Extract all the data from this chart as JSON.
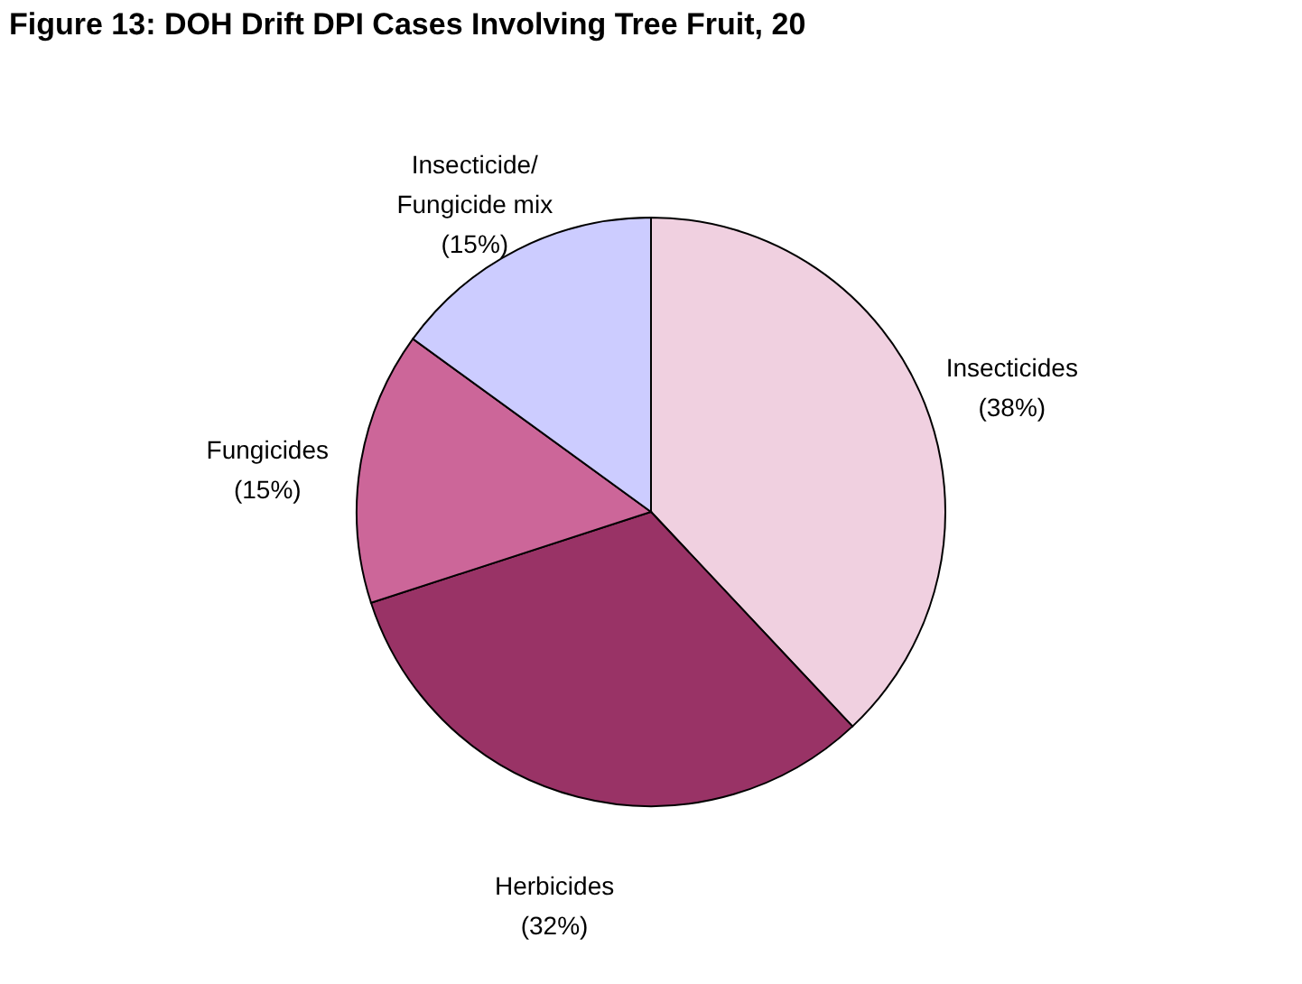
{
  "chart_data": {
    "type": "pie",
    "title": "Figure 13: DOH Drift DPI Cases Involving Tree Fruit, 20",
    "categories": [
      "Insecticides",
      "Herbicides",
      "Fungicides",
      "Insecticide/\nFungicide mix"
    ],
    "values": [
      38,
      32,
      15,
      15
    ],
    "value_labels": [
      "(38%)",
      "(32%)",
      "(15%)",
      "(15%)"
    ],
    "colors": [
      "#f0d0e0",
      "#993366",
      "#cc6699",
      "#ccccff"
    ],
    "legend": false
  }
}
